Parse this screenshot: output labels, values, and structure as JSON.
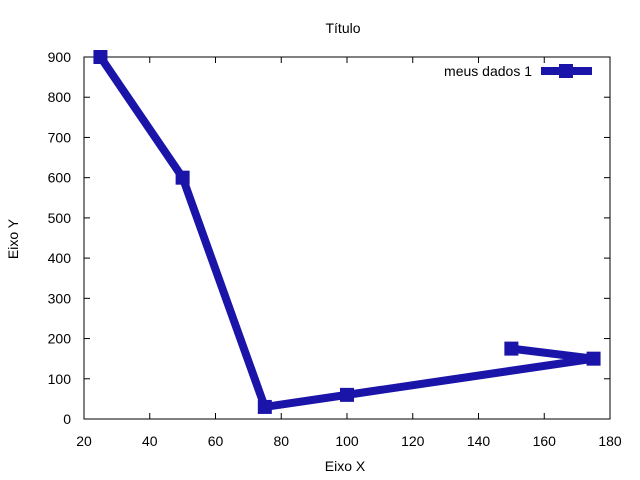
{
  "chart_data": {
    "type": "line",
    "title": "Título",
    "xlabel": "Eixo X",
    "ylabel": "Eixo Y",
    "xlim": [
      20,
      180
    ],
    "ylim": [
      0,
      900
    ],
    "xticks": [
      20,
      40,
      60,
      80,
      100,
      120,
      140,
      160,
      180
    ],
    "yticks": [
      0,
      100,
      200,
      300,
      400,
      500,
      600,
      700,
      800,
      900
    ],
    "legend_position": "top-right",
    "series": [
      {
        "name": "meus dados 1",
        "color": "#1a14a8",
        "marker": "square",
        "x": [
          25,
          50,
          75,
          100,
          175,
          150
        ],
        "y": [
          900,
          600,
          30,
          60,
          150,
          175
        ]
      }
    ]
  }
}
